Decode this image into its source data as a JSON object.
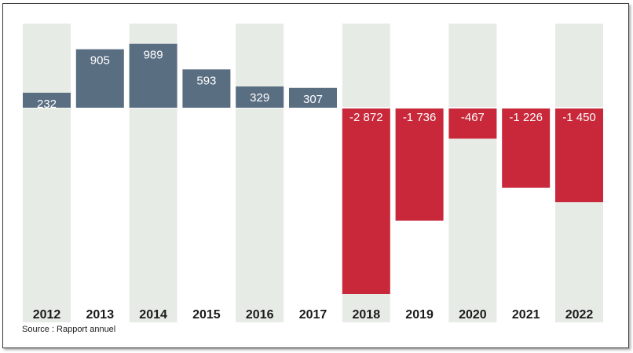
{
  "chart_data": {
    "type": "bar",
    "categories": [
      "2012",
      "2013",
      "2014",
      "2015",
      "2016",
      "2017",
      "2018",
      "2019",
      "2020",
      "2021",
      "2022"
    ],
    "values": [
      232,
      905,
      989,
      593,
      329,
      307,
      -2872,
      -1736,
      -467,
      -1226,
      -1450
    ],
    "value_labels": [
      "232",
      "905",
      "989",
      "593",
      "329",
      "307",
      "-2 872",
      "-1 736",
      "-467",
      "-1 226",
      "-1 450"
    ],
    "ylim": [
      -2872,
      989
    ],
    "colors": {
      "positive": "#5a6e82",
      "negative": "#c8283a",
      "band": "#e6ebe6"
    },
    "grid": false,
    "source": "Source : Rapport annuel"
  }
}
